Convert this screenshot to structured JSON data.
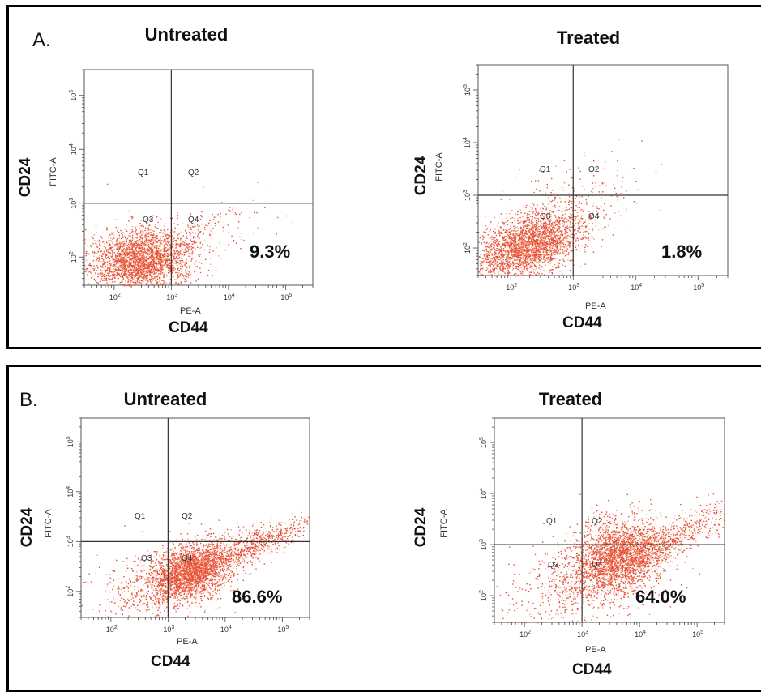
{
  "panels": [
    {
      "letter": "A.",
      "plots": [
        {
          "title": "Untreated",
          "q4_pct": "9.3%"
        },
        {
          "title": "Treated",
          "q4_pct": "1.8%"
        }
      ]
    },
    {
      "letter": "B.",
      "plots": [
        {
          "title": "Untreated",
          "q4_pct": "86.6%"
        },
        {
          "title": "Treated",
          "q4_pct": "64.0%"
        }
      ]
    }
  ],
  "axis": {
    "x_channel": "PE-A",
    "y_channel": "FITC-A",
    "x_marker": "CD44",
    "y_marker": "CD24",
    "quadrants": [
      "Q1",
      "Q2",
      "Q3",
      "Q4"
    ]
  },
  "colors": {
    "dots": "#e8503a",
    "dots_light": "#f0a070",
    "gate": "#333333"
  },
  "chart_data": [
    {
      "type": "scatter",
      "title": "Untreated",
      "xlabel": "PE-A",
      "ylabel": "FITC-A",
      "xscale": "log",
      "yscale": "log",
      "xlim": [
        30,
        300000
      ],
      "ylim": [
        30,
        300000
      ],
      "gate": {
        "x": 1000,
        "y": 1000
      },
      "x_ticks": [
        "10^2",
        "10^3",
        "10^4",
        "10^5"
      ],
      "y_ticks": [
        "10^2",
        "10^3",
        "10^4",
        "10^5"
      ],
      "quadrant_labels": [
        "Q1",
        "Q2",
        "Q3",
        "Q4"
      ],
      "annotations": [
        {
          "quadrant": "Q4",
          "text": "9.3%"
        }
      ]
    },
    {
      "type": "scatter",
      "title": "Treated",
      "xlabel": "PE-A",
      "ylabel": "FITC-A",
      "xscale": "log",
      "yscale": "log",
      "xlim": [
        30,
        300000
      ],
      "ylim": [
        30,
        300000
      ],
      "gate": {
        "x": 1000,
        "y": 1000
      },
      "x_ticks": [
        "10^2",
        "10^3",
        "10^4",
        "10^5"
      ],
      "y_ticks": [
        "10^2",
        "10^3",
        "10^4",
        "10^5"
      ],
      "quadrant_labels": [
        "Q1",
        "Q2",
        "Q3",
        "Q4"
      ],
      "annotations": [
        {
          "quadrant": "Q4",
          "text": "1.8%"
        }
      ]
    },
    {
      "type": "scatter",
      "title": "Untreated",
      "xlabel": "PE-A",
      "ylabel": "FITC-A",
      "xscale": "log",
      "yscale": "log",
      "xlim": [
        30,
        300000
      ],
      "ylim": [
        30,
        300000
      ],
      "gate": {
        "x": 1000,
        "y": 1000
      },
      "x_ticks": [
        "10^2",
        "10^3",
        "10^4",
        "10^5"
      ],
      "y_ticks": [
        "10^2",
        "10^3",
        "10^4",
        "10^5"
      ],
      "quadrant_labels": [
        "Q1",
        "Q2",
        "Q3",
        "Q4"
      ],
      "annotations": [
        {
          "quadrant": "Q4",
          "text": "86.6%"
        }
      ]
    },
    {
      "type": "scatter",
      "title": "Treated",
      "xlabel": "PE-A",
      "ylabel": "FITC-A",
      "xscale": "log",
      "yscale": "log",
      "xlim": [
        30,
        300000
      ],
      "ylim": [
        30,
        300000
      ],
      "gate": {
        "x": 1000,
        "y": 1000
      },
      "x_ticks": [
        "10^2",
        "10^3",
        "10^4",
        "10^5"
      ],
      "y_ticks": [
        "10^2",
        "10^3",
        "10^4",
        "10^5"
      ],
      "quadrant_labels": [
        "Q1",
        "Q2",
        "Q3",
        "Q4"
      ],
      "annotations": [
        {
          "quadrant": "Q4",
          "text": "64.0%"
        }
      ]
    }
  ]
}
